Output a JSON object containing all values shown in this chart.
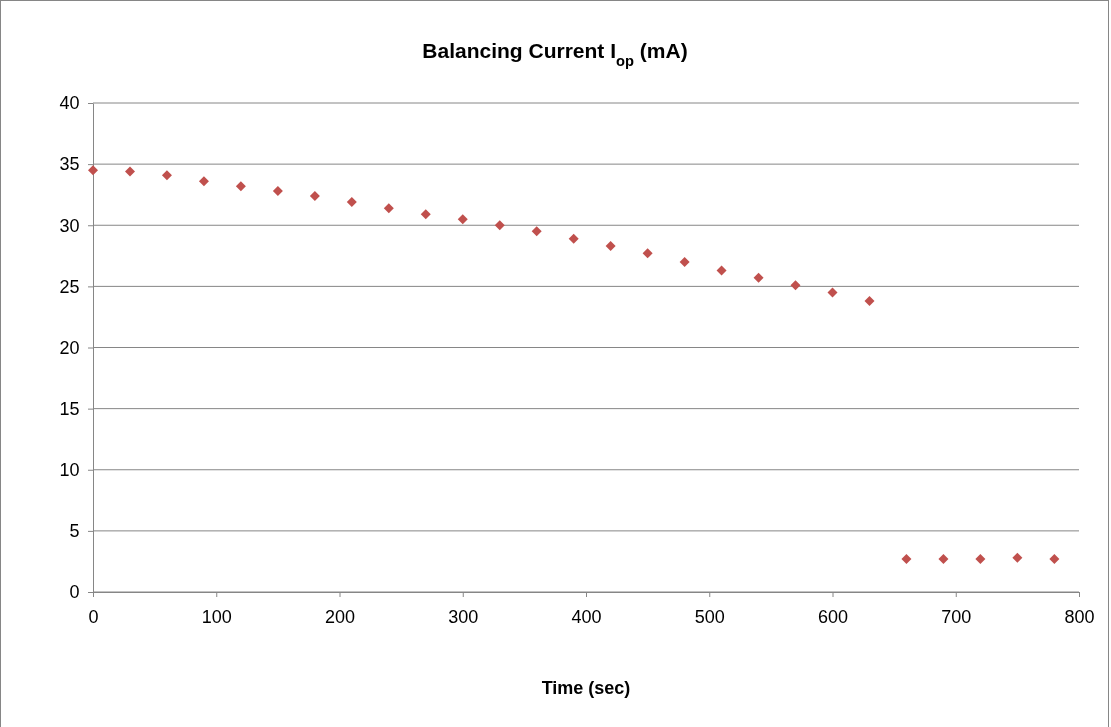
{
  "chart_data": {
    "type": "scatter",
    "title": "Balancing Current I$_{op}$ (mA)",
    "xlabel": "Time (sec)",
    "x": [
      0,
      30,
      60,
      90,
      120,
      150,
      180,
      210,
      240,
      270,
      300,
      330,
      360,
      390,
      420,
      450,
      480,
      510,
      540,
      570,
      600,
      630,
      660,
      690,
      720,
      750,
      780
    ],
    "series": [
      {
        "color": "#c0504d",
        "values": [
          34.5,
          34.4,
          34.1,
          33.6,
          33.2,
          32.8,
          32.4,
          31.9,
          31.4,
          30.9,
          30.5,
          30.0,
          29.5,
          28.9,
          28.3,
          27.7,
          27.0,
          26.3,
          25.7,
          25.1,
          24.5,
          23.8,
          2.7,
          2.7,
          2.7,
          2.8,
          2.7
        ]
      }
    ],
    "xlim": [
      0,
      800
    ],
    "xticks": [
      0,
      100,
      200,
      300,
      400,
      500,
      600,
      700,
      800
    ],
    "ylim": [
      0,
      40
    ],
    "yticks": [
      0,
      5,
      10,
      15,
      20,
      25,
      30,
      35,
      40
    ],
    "grid": "y",
    "marker": "diamond"
  }
}
